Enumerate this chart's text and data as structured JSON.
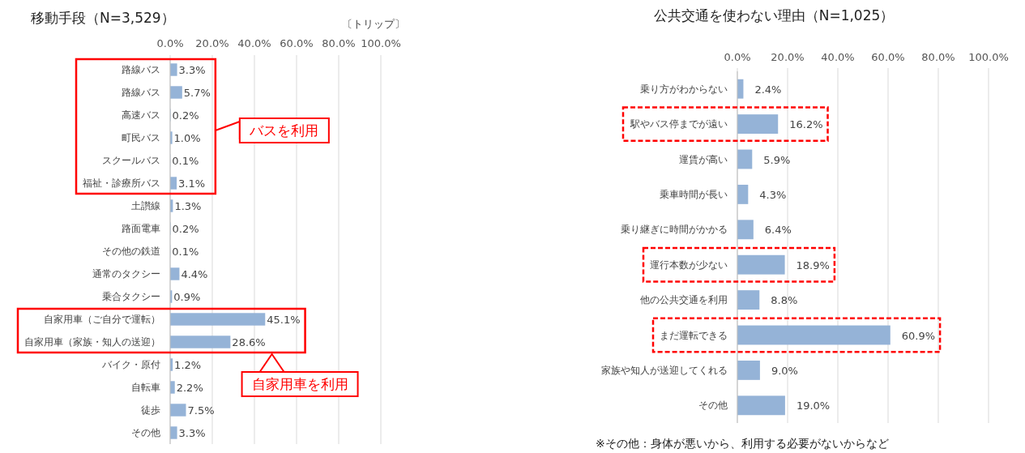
{
  "chart_data": [
    {
      "type": "bar",
      "orientation": "horizontal",
      "title": "移動手段（N=3,529）",
      "xlabel": "〔トリップ〕",
      "categories": [
        "路線バス",
        "路線バス",
        "高速バス",
        "町民バス",
        "スクールバス",
        "福祉・診療所バス",
        "土讃線",
        "路面電車",
        "その他の鉄道",
        "通常のタクシー",
        "乗合タクシー",
        "自家用車（ご自分で運転）",
        "自家用車（家族・知人の送迎）",
        "バイク・原付",
        "自転車",
        "徒歩",
        "その他"
      ],
      "values": [
        3.3,
        5.7,
        0.2,
        1.0,
        0.1,
        3.1,
        1.3,
        0.2,
        0.1,
        4.4,
        0.9,
        45.1,
        28.6,
        1.2,
        2.2,
        7.5,
        3.3
      ],
      "value_labels": [
        "3.3%",
        "5.7%",
        "0.2%",
        "1.0%",
        "0.1%",
        "3.1%",
        "1.3%",
        "0.2%",
        "0.1%",
        "4.4%",
        "0.9%",
        "45.1%",
        "28.6%",
        "1.2%",
        "2.2%",
        "7.5%",
        "3.3%"
      ],
      "color": "#95b3d7",
      "xlim": [
        0,
        100
      ],
      "xticks": [
        {
          "value": 0,
          "label": "0.0%"
        },
        {
          "value": 20,
          "label": "20.0%"
        },
        {
          "value": 40,
          "label": "40.0%"
        },
        {
          "value": 60,
          "label": "60.0%"
        },
        {
          "value": 80,
          "label": "80.0%"
        },
        {
          "value": 100,
          "label": "100.0%"
        }
      ],
      "grid": "x",
      "annotations": [
        "バスを利用",
        "自家用車を利用"
      ]
    },
    {
      "type": "bar",
      "orientation": "horizontal",
      "title": "公共交通を使わない理由（N=1,025）",
      "categories": [
        "乗り方がわからない",
        "駅やバス停までが遠い",
        "運賃が高い",
        "乗車時間が長い",
        "乗り継ぎに時間がかかる",
        "運行本数が少ない",
        "他の公共交通を利用",
        "まだ運転できる",
        "家族や知人が送迎してくれる",
        "その他"
      ],
      "values": [
        2.4,
        16.2,
        5.9,
        4.3,
        6.4,
        18.9,
        8.8,
        60.9,
        9.0,
        19.0
      ],
      "value_labels": [
        "2.4%",
        "16.2%",
        "5.9%",
        "4.3%",
        "6.4%",
        "18.9%",
        "8.8%",
        "60.9%",
        "9.0%",
        "19.0%"
      ],
      "color": "#95b3d7",
      "xlim": [
        0,
        100
      ],
      "xticks": [
        {
          "value": 0,
          "label": "0.0%"
        },
        {
          "value": 20,
          "label": "20.0%"
        },
        {
          "value": 40,
          "label": "40.0%"
        },
        {
          "value": 60,
          "label": "60.0%"
        },
        {
          "value": 80,
          "label": "80.0%"
        },
        {
          "value": 100,
          "label": "100.0%"
        }
      ],
      "grid": "x",
      "annotations": [
        "※その他：身体が悪いから、利用する必要がないからなど"
      ]
    }
  ]
}
